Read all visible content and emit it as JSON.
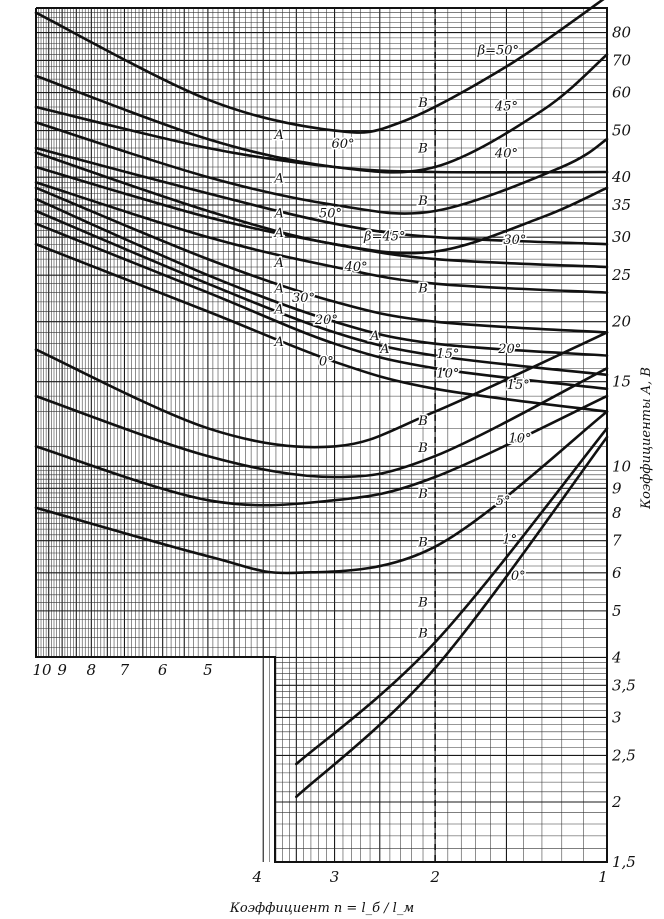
{
  "chart_data": {
    "type": "line",
    "title": "",
    "xlabel": "Коэффициент n = l_б / l_м",
    "ylabel": "Коэффициенты A, B",
    "x_scale": "log",
    "y_scale": "log",
    "x_direction": "reversed",
    "xlim": [
      1,
      10
    ],
    "ylim": [
      1.5,
      90
    ],
    "grid": true,
    "x_ticks": [
      "10",
      "9",
      "8",
      "7",
      "6",
      "5",
      "4",
      "3",
      "2",
      "1"
    ],
    "y_ticks": [
      "1,5",
      "2",
      "2,5",
      "3",
      "3,5",
      "4",
      "5",
      "6",
      "7",
      "8",
      "9",
      "10",
      "15",
      "20",
      "25",
      "30",
      "35",
      "40",
      "50",
      "60",
      "70",
      "80"
    ],
    "families": [
      {
        "name": "A",
        "description": "curves for coefficient A"
      },
      {
        "name": "B",
        "description": "curves for coefficient B"
      }
    ],
    "series": [
      {
        "family": "B",
        "angle": "β=50°",
        "x": [
          10,
          5,
          3,
          2.3,
          1.5,
          1
        ],
        "y": [
          88,
          58,
          50,
          52,
          68,
          95
        ]
      },
      {
        "family": "B",
        "angle": "45°",
        "x": [
          10,
          5,
          3,
          2,
          1.3,
          1
        ],
        "y": [
          65,
          48,
          42,
          42,
          55,
          72
        ]
      },
      {
        "family": "B",
        "angle": "40°",
        "x": [
          10,
          5,
          3,
          2,
          1.2,
          1
        ],
        "y": [
          52,
          40,
          35,
          34,
          42,
          48
        ]
      },
      {
        "family": "B",
        "angle": "30°",
        "x": [
          10,
          5,
          3,
          2,
          1.3,
          1
        ],
        "y": [
          45,
          34,
          29,
          28,
          33,
          38
        ]
      },
      {
        "family": "A",
        "angle": "60°",
        "x": [
          10,
          5,
          3,
          2,
          1
        ],
        "y": [
          56,
          46,
          42,
          41,
          41
        ]
      },
      {
        "family": "A",
        "angle": "50°",
        "x": [
          10,
          5,
          3,
          2,
          1
        ],
        "y": [
          46,
          37,
          32,
          30,
          29
        ]
      },
      {
        "family": "A",
        "angle": "β=45°",
        "x": [
          10,
          5,
          3,
          2,
          1
        ],
        "y": [
          42,
          33,
          29,
          27,
          26
        ]
      },
      {
        "family": "A",
        "angle": "40°",
        "x": [
          10,
          5,
          3,
          2,
          1
        ],
        "y": [
          39,
          30,
          26,
          24,
          23
        ]
      },
      {
        "family": "A",
        "angle": "30°",
        "x": [
          10,
          5,
          3,
          2,
          1
        ],
        "y": [
          38,
          27,
          22,
          20,
          19
        ]
      },
      {
        "family": "A",
        "angle": "20°",
        "x": [
          10,
          5,
          3,
          2,
          1
        ],
        "y": [
          36,
          25,
          20,
          18,
          17
        ]
      },
      {
        "family": "A",
        "angle": "15°",
        "x": [
          10,
          5,
          3,
          2,
          1
        ],
        "y": [
          34,
          24,
          19,
          17,
          15.5
        ]
      },
      {
        "family": "A",
        "angle": "10°",
        "x": [
          10,
          5,
          3,
          2,
          1
        ],
        "y": [
          32,
          23,
          18,
          16,
          14.5
        ]
      },
      {
        "family": "A",
        "angle": "0°",
        "x": [
          10,
          5,
          3,
          2,
          1
        ],
        "y": [
          29,
          21,
          16.5,
          14.5,
          13
        ]
      },
      {
        "family": "B",
        "angle": "20°",
        "x": [
          10,
          5,
          3,
          2,
          1
        ],
        "y": [
          17.5,
          12,
          11,
          13,
          19
        ]
      },
      {
        "family": "B",
        "angle": "15°",
        "x": [
          10,
          5,
          3,
          2,
          1
        ],
        "y": [
          14,
          10.5,
          9.5,
          10.5,
          16
        ]
      },
      {
        "family": "B",
        "angle": "10°",
        "x": [
          10,
          5,
          3,
          2,
          1
        ],
        "y": [
          11,
          8.5,
          8.5,
          9.5,
          14
        ]
      },
      {
        "family": "B",
        "angle": "5°",
        "x": [
          10,
          5,
          3.5,
          2,
          1
        ],
        "y": [
          8.2,
          6.5,
          6,
          6.8,
          13
        ]
      },
      {
        "family": "B",
        "angle": "1°",
        "x": [
          3.5,
          2,
          1
        ],
        "y": [
          2.4,
          4.3,
          12
        ]
      },
      {
        "family": "B",
        "angle": "0°",
        "x": [
          3.5,
          2,
          1
        ],
        "y": [
          2.05,
          3.8,
          11.5
        ]
      }
    ],
    "series_labels": [
      {
        "text": "β=50°",
        "x": 1.55,
        "y": 72
      },
      {
        "text": "45°",
        "x": 1.5,
        "y": 55
      },
      {
        "text": "40°",
        "x": 1.5,
        "y": 44
      },
      {
        "text": "30°",
        "x": 1.45,
        "y": 29
      },
      {
        "text": "60°",
        "x": 2.9,
        "y": 46
      },
      {
        "text": "50°",
        "x": 3.05,
        "y": 33
      },
      {
        "text": "β=45°",
        "x": 2.45,
        "y": 29.5
      },
      {
        "text": "40°",
        "x": 2.75,
        "y": 25.5
      },
      {
        "text": "30°",
        "x": 3.4,
        "y": 22
      },
      {
        "text": "20°",
        "x": 3.1,
        "y": 19.8
      },
      {
        "text": "15°",
        "x": 1.9,
        "y": 16.8
      },
      {
        "text": "10°",
        "x": 1.9,
        "y": 15.3
      },
      {
        "text": "0°",
        "x": 3.1,
        "y": 16.2
      },
      {
        "text": "20°",
        "x": 1.48,
        "y": 17.2
      },
      {
        "text": "15°",
        "x": 1.43,
        "y": 14.5
      },
      {
        "text": "10°",
        "x": 1.42,
        "y": 11.2
      },
      {
        "text": "5°",
        "x": 1.52,
        "y": 8.3
      },
      {
        "text": "1°",
        "x": 1.48,
        "y": 6.9
      },
      {
        "text": "0°",
        "x": 1.43,
        "y": 5.8
      }
    ],
    "family_labels": [
      {
        "text": "B",
        "x": 2.1,
        "y": 56
      },
      {
        "text": "B",
        "x": 2.1,
        "y": 45
      },
      {
        "text": "B",
        "x": 2.1,
        "y": 35
      },
      {
        "text": "B",
        "x": 2.1,
        "y": 23
      },
      {
        "text": "B",
        "x": 2.1,
        "y": 12.2
      },
      {
        "text": "B",
        "x": 2.1,
        "y": 10.7
      },
      {
        "text": "B",
        "x": 2.1,
        "y": 8.6
      },
      {
        "text": "B",
        "x": 2.1,
        "y": 6.8
      },
      {
        "text": "B",
        "x": 2.1,
        "y": 5.1
      },
      {
        "text": "B",
        "x": 2.1,
        "y": 4.4
      },
      {
        "text": "A",
        "x": 3.75,
        "y": 48
      },
      {
        "text": "A",
        "x": 3.75,
        "y": 39
      },
      {
        "text": "A",
        "x": 3.75,
        "y": 33
      },
      {
        "text": "A",
        "x": 3.75,
        "y": 30
      },
      {
        "text": "A",
        "x": 3.75,
        "y": 26
      },
      {
        "text": "A",
        "x": 3.75,
        "y": 23
      },
      {
        "text": "A",
        "x": 3.75,
        "y": 20.8
      },
      {
        "text": "A",
        "x": 3.75,
        "y": 17.8
      },
      {
        "text": "A",
        "x": 2.55,
        "y": 18.3
      },
      {
        "text": "A",
        "x": 2.45,
        "y": 17.2
      }
    ]
  }
}
